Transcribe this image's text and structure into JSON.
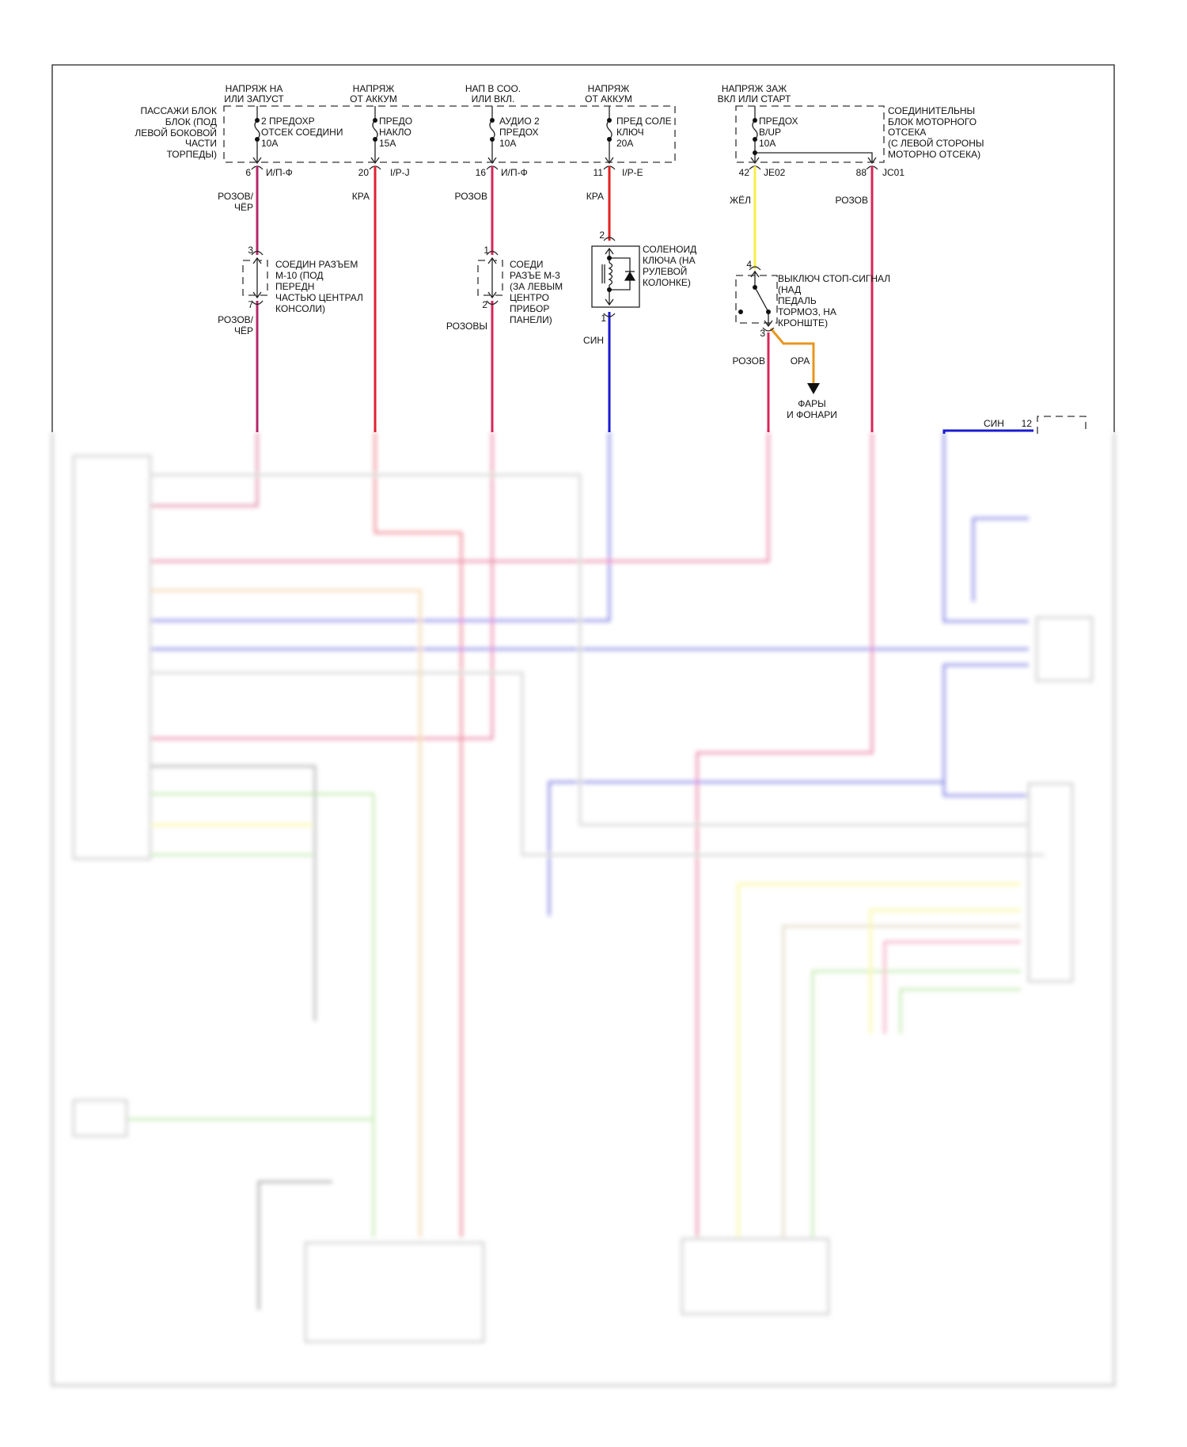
{
  "colors": {
    "pink": "#c8255a",
    "red": "#e02020",
    "blue": "#1a1ad0",
    "yellow": "#f5f04a",
    "orange": "#e8961e",
    "green": "#8fd86a",
    "gray": "#b0b0b0"
  },
  "supplies": [
    {
      "l1": "НАПРЯЖ НА",
      "l2": "ИЛИ ЗАПУСТ"
    },
    {
      "l1": "НАПРЯЖ",
      "l2": "ОТ АККУМ"
    },
    {
      "l1": "НАП В СОО.",
      "l2": "ИЛИ ВКЛ."
    },
    {
      "l1": "НАПРЯЖ",
      "l2": "ОТ АККУМ"
    },
    {
      "l1": "НАПРЯЖ ЗАЖ",
      "l2": "ВКЛ ИЛИ СТАРТ"
    }
  ],
  "passenger_box": [
    "ПАССАЖИ БЛОК",
    "БЛОК (ПОД",
    "ЛЕВОЙ БОКОВОЙ",
    "ЧАСТИ",
    "ТОРПЕДЫ)"
  ],
  "engine_box": [
    "СОЕДИНИТЕЛЬНЫ",
    "БЛОК МОТОРНОГО",
    "ОТСЕКА",
    "(С ЛЕВОЙ СТОРОНЫ",
    "МОТОРНО ОТСЕКА)"
  ],
  "fuses": [
    [
      "2 ПРЕДОХР",
      "ОТСЕК СОЕДИНИ",
      "10A"
    ],
    [
      "ПРЕДО",
      "НАКЛО",
      "15A"
    ],
    [
      "АУДИО 2",
      "ПРЕДОХ",
      "10A"
    ],
    [
      "ПРЕД СОЛЕ",
      "КЛЮЧ",
      "20A"
    ],
    [
      "ПРЕДОХ",
      "B/UP",
      "10A"
    ]
  ],
  "pins": [
    {
      "num": "6",
      "conn": "И/П-Ф"
    },
    {
      "num": "20",
      "conn": "I/P-J"
    },
    {
      "num": "16",
      "conn": "И/П-Ф"
    },
    {
      "num": "11",
      "conn": "I/P-E"
    },
    {
      "num": "42",
      "conn": "JE02"
    },
    {
      "num": "88",
      "conn": "JC01"
    }
  ],
  "wire_labels": {
    "c1_top": [
      "РОЗОВ/",
      "ЧЁР"
    ],
    "c2": "КРА",
    "c3": "РОЗОВ",
    "c4": "КРА",
    "c5": "ЖЁЛ",
    "c6": "РОЗОВ",
    "c1_bottom": [
      "РОЗОВ/",
      "ЧЁР"
    ],
    "c3_bottom": "РОЗОВЫ",
    "c4_bottom": "СИН",
    "brake_out": "РОЗОВ",
    "orange": "ОРА",
    "right_blue": "СИН"
  },
  "m10": {
    "pin_top": "3",
    "pin_bottom": "7",
    "label": [
      "СОЕДИН РАЗЪЕМ",
      "М-10 (ПОД",
      "ПЕРЕДН",
      "ЧАСТЬЮ ЦЕНТРАЛ",
      "КОНСОЛИ)"
    ]
  },
  "m3": {
    "pin_top": "1",
    "pin_bottom": "2",
    "label": [
      "СОЕДИ",
      "РАЗЪЕ М-3",
      "(ЗА ЛЕВЫМ",
      "ЦЕНТРО",
      "ПРИБОР",
      "ПАНЕЛИ)"
    ]
  },
  "solenoid": {
    "pin_top": "2",
    "pin_bottom": "1",
    "label": [
      "СОЛЕНОИД",
      "КЛЮЧА (НА",
      "РУЛЕВОЙ",
      "КОЛОНКЕ)"
    ]
  },
  "brake_switch": {
    "pin_top": "4",
    "pin_bottom": "3",
    "label": [
      "ВЫКЛЮЧ СТОП-СИГНАЛ",
      "(НАД",
      "ПЕДАЛЬ",
      "ТОРМОЗ, НА",
      "КРОНШТЕ)"
    ]
  },
  "lamps": [
    "ФАРЫ",
    "И ФОНАРИ"
  ],
  "right_connector_pin": "12"
}
